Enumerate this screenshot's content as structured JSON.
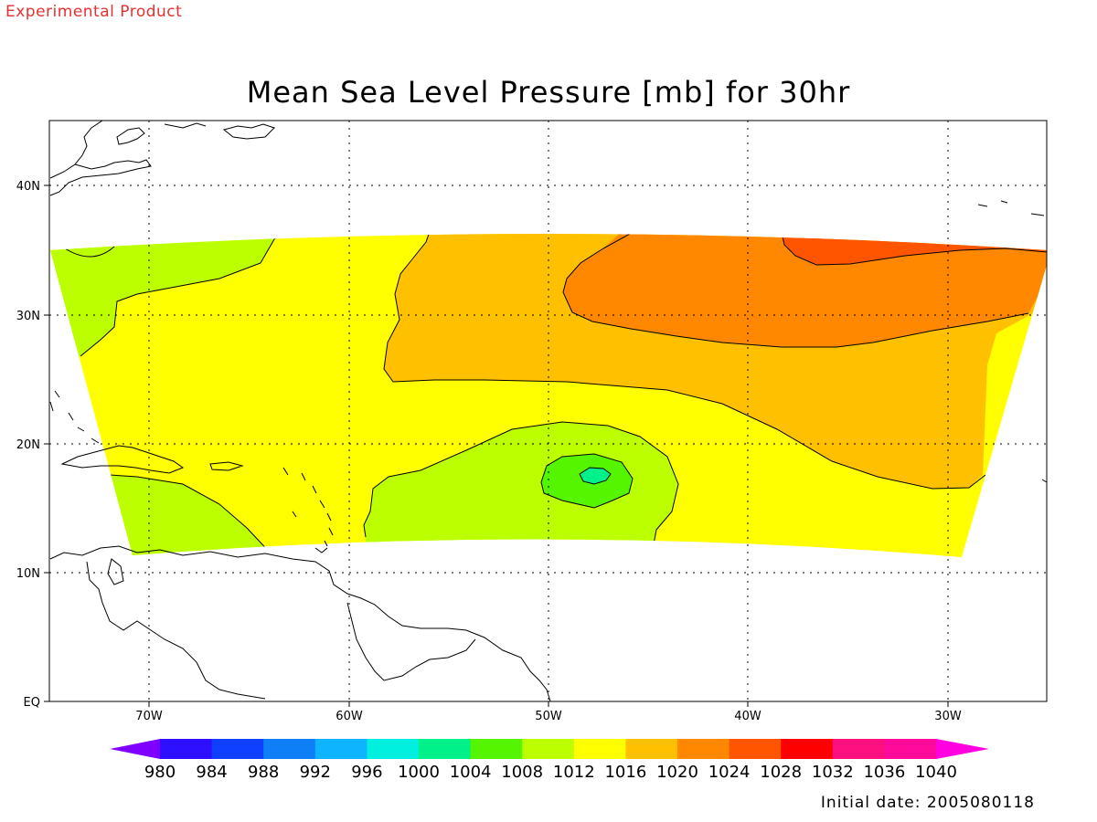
{
  "header": {
    "banner": "Experimental Product",
    "title": "Mean Sea Level Pressure [mb] for 30hr"
  },
  "footer": {
    "initial_date": "Initial date: 2005080118"
  },
  "map": {
    "lat_labels": [
      "40N",
      "30N",
      "20N",
      "10N",
      "EQ"
    ],
    "lon_labels": [
      "70W",
      "60W",
      "50W",
      "40W",
      "30W"
    ]
  },
  "colorbar": {
    "labels": [
      "980",
      "984",
      "988",
      "992",
      "996",
      "1000",
      "1004",
      "1008",
      "1012",
      "1016",
      "1020",
      "1024",
      "1028",
      "1032",
      "1036",
      "1040"
    ],
    "colors": [
      "#8000ff",
      "#2c10ff",
      "#1040ff",
      "#0f7ff8",
      "#0fb4ff",
      "#00f0e0",
      "#00f08a",
      "#55f500",
      "#bbff00",
      "#ffff00",
      "#ffc000",
      "#ff8800",
      "#ff5500",
      "#ff0000",
      "#ff1080",
      "#ff0a9a",
      "#ff00e0"
    ]
  },
  "palette": {
    "p1012_1016": "#bbff00",
    "p1016_1020": "#ffff00",
    "p1020_1024": "#ffc000",
    "p1024_1028": "#ff8800",
    "p1028_1032": "#ff5500",
    "p1004_1008": "#55f500",
    "p1000_1004": "#00f08a"
  }
}
